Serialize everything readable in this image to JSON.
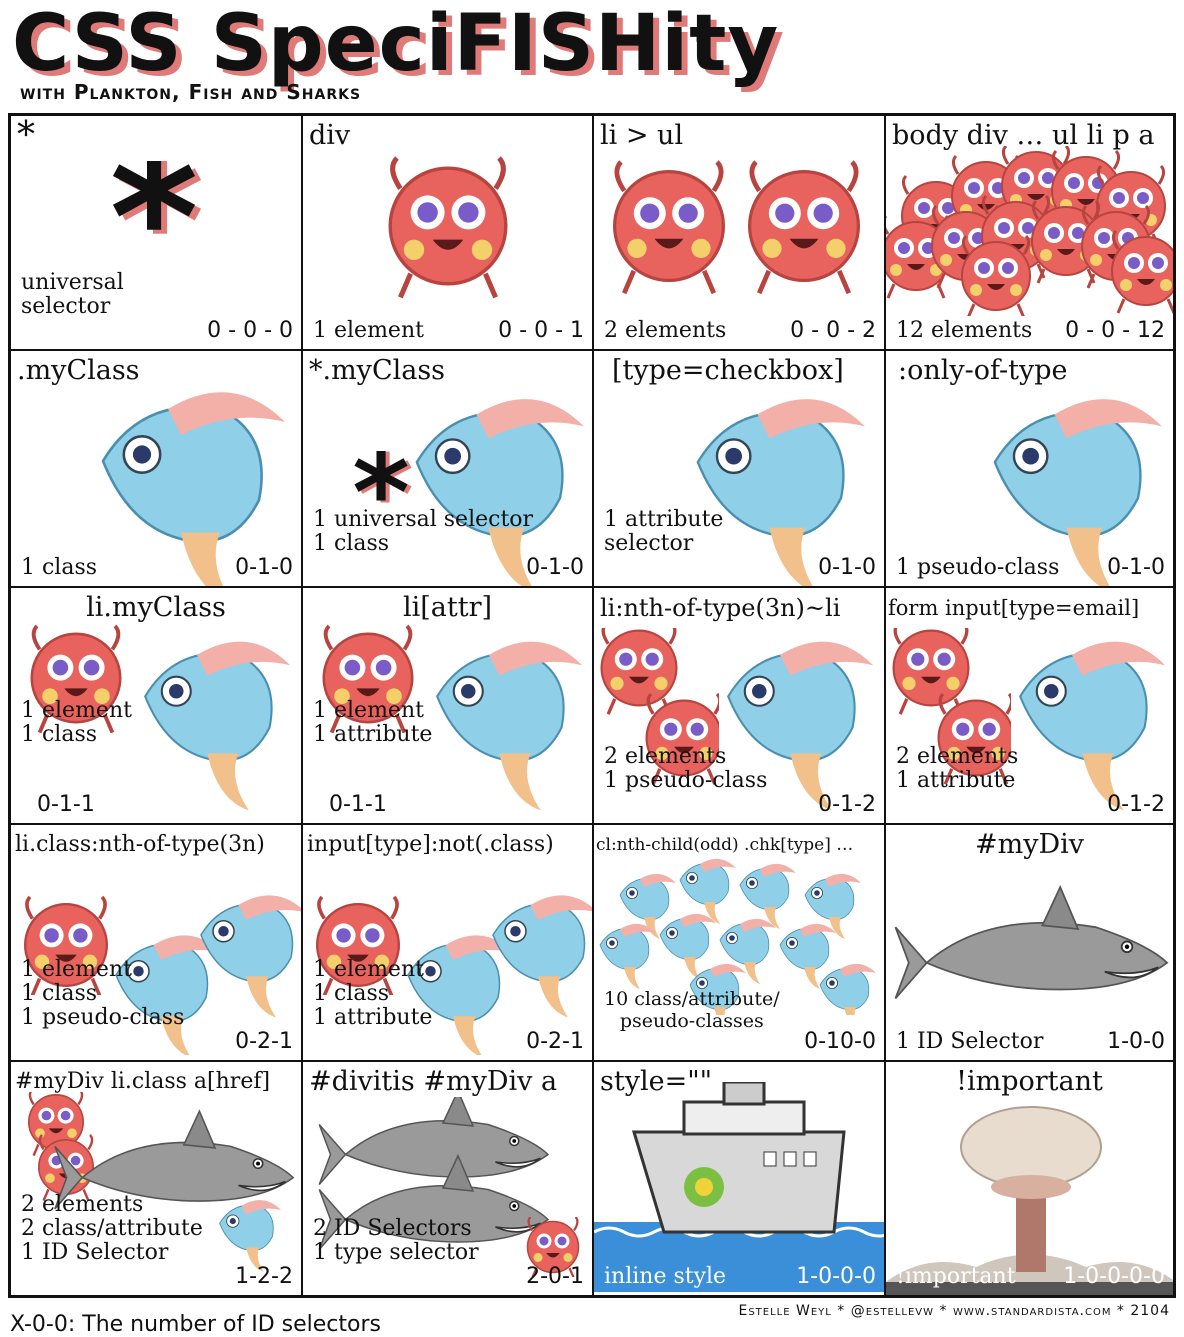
{
  "header": {
    "title": "CSS SpeciFISHity",
    "subtitle": "with Plankton, Fish and Sharks"
  },
  "cells": [
    {
      "selector": "*",
      "desc": [
        "universal",
        "selector"
      ],
      "score": "0 - 0 - 0"
    },
    {
      "selector": "div",
      "desc": [
        "1 element"
      ],
      "score": "0 - 0 - 1"
    },
    {
      "selector": "li > ul",
      "desc": [
        "2 elements"
      ],
      "score": "0 - 0 - 2"
    },
    {
      "selector": "body div … ul li p a",
      "desc": [
        "12 elements"
      ],
      "score": "0 - 0 - 12"
    },
    {
      "selector": ".myClass",
      "desc": [
        "1 class"
      ],
      "score": "0-1-0"
    },
    {
      "selector": "*.myClass",
      "desc": [
        "1 universal selector",
        "1 class"
      ],
      "score": "0-1-0"
    },
    {
      "selector": "[type=checkbox]",
      "desc": [
        "1 attribute",
        "selector"
      ],
      "score": "0-1-0"
    },
    {
      "selector": ":only-of-type",
      "desc": [
        "1 pseudo-class"
      ],
      "score": "0-1-0"
    },
    {
      "selector": "li.myClass",
      "desc": [
        "1 element",
        "1 class"
      ],
      "score": "0-1-1"
    },
    {
      "selector": "li[attr]",
      "desc": [
        "1 element",
        "1 attribute"
      ],
      "score": "0-1-1"
    },
    {
      "selector": "li:nth-of-type(3n)~li",
      "desc": [
        "2 elements",
        "1 pseudo-class"
      ],
      "score": "0-1-2"
    },
    {
      "selector": "form input[type=email]",
      "desc": [
        "2 elements",
        "1 attribute"
      ],
      "score": "0-1-2"
    },
    {
      "selector": "li.class:nth-of-type(3n)",
      "desc": [
        "1 element",
        "1 class",
        "1 pseudo-class"
      ],
      "score": "0-2-1"
    },
    {
      "selector": "input[type]:not(.class)",
      "desc": [
        "1 element",
        "1 class",
        "1 attribute"
      ],
      "score": "0-2-1"
    },
    {
      "selector": "cl:nth-child(odd) .chk[type] …",
      "desc": [
        "10 class/attribute/",
        "pseudo-classes"
      ],
      "score": "0-10-0"
    },
    {
      "selector": "#myDiv",
      "desc": [
        "1 ID Selector"
      ],
      "score": "1-0-0"
    },
    {
      "selector": "#myDiv li.class a[href]",
      "desc": [
        "2 elements",
        "2 class/attribute",
        "1 ID Selector"
      ],
      "score": "1-2-2"
    },
    {
      "selector": "#divitis #myDiv a",
      "desc": [
        "2 ID Selectors",
        "1 type selector"
      ],
      "score": "2-0-1"
    },
    {
      "selector": "style=\"\"",
      "desc": [
        "inline style"
      ],
      "score": "1-0-0-0"
    },
    {
      "selector": "!important",
      "desc": [
        "!important"
      ],
      "score": "1-0-0-0-0"
    }
  ],
  "credit": "Estelle Weyl * @estellevw * www.standardista.com * 2104",
  "footer": "X-0-0: The number of ID selectors",
  "colors": {
    "plankton": "#e8635e",
    "fish": "#8fd0e8",
    "shark": "#9a9a9a",
    "water": "#3a8fd8"
  }
}
